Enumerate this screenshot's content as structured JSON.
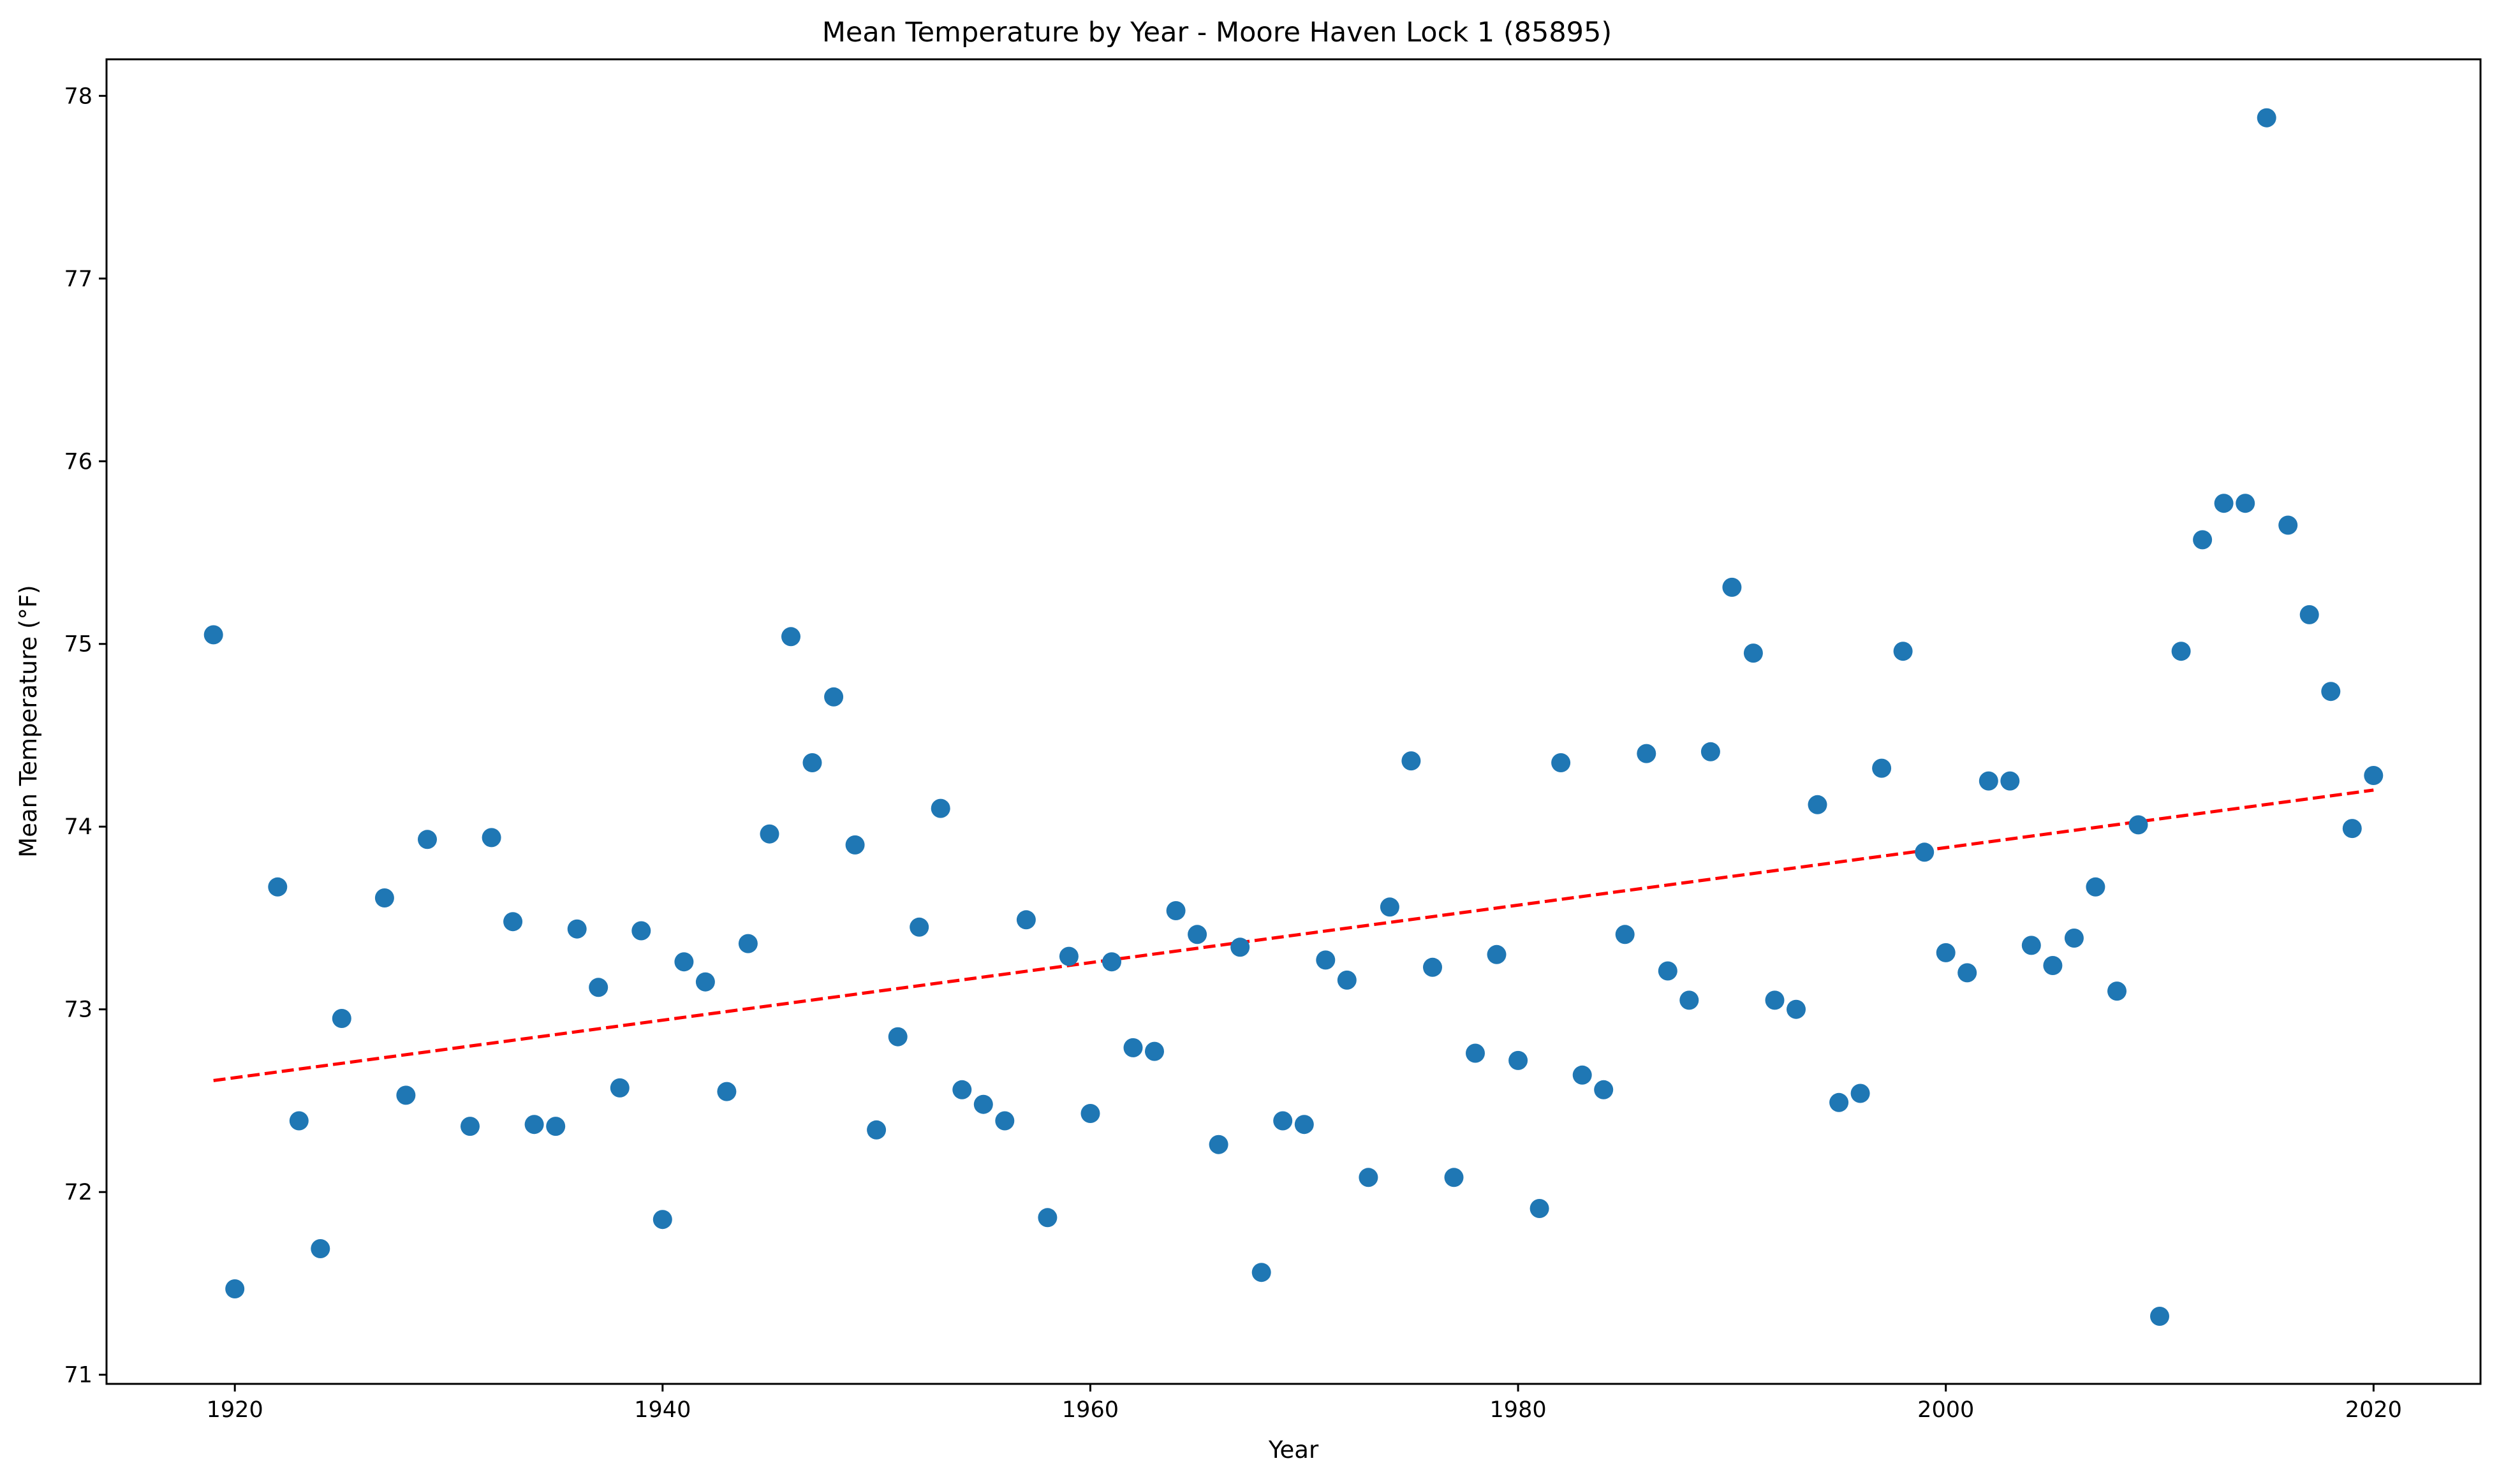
{
  "chart_data": {
    "type": "scatter",
    "title": "Mean Temperature by Year - Moore Haven Lock 1 (85895)",
    "xlabel": "Year",
    "ylabel": "Mean Temperature (°F)",
    "xlim": [
      1914,
      2025
    ],
    "ylim": [
      70.95,
      78.2
    ],
    "x_ticks": [
      1920,
      1940,
      1960,
      1980,
      2000,
      2020
    ],
    "y_ticks": [
      71,
      72,
      73,
      74,
      75,
      76,
      77,
      78
    ],
    "grid": false,
    "series": [
      {
        "color": "#1f77b4",
        "points": [
          [
            1919,
            75.05
          ],
          [
            1920,
            71.47
          ],
          [
            1922,
            73.67
          ],
          [
            1923,
            72.39
          ],
          [
            1924,
            71.69
          ],
          [
            1925,
            72.95
          ],
          [
            1927,
            73.61
          ],
          [
            1928,
            72.53
          ],
          [
            1929,
            73.93
          ],
          [
            1931,
            72.36
          ],
          [
            1932,
            73.94
          ],
          [
            1933,
            73.48
          ],
          [
            1934,
            72.37
          ],
          [
            1935,
            72.36
          ],
          [
            1936,
            73.44
          ],
          [
            1937,
            73.12
          ],
          [
            1938,
            72.57
          ],
          [
            1939,
            73.43
          ],
          [
            1940,
            71.85
          ],
          [
            1941,
            73.26
          ],
          [
            1942,
            73.15
          ],
          [
            1943,
            72.55
          ],
          [
            1944,
            73.36
          ],
          [
            1945,
            73.96
          ],
          [
            1946,
            75.04
          ],
          [
            1947,
            74.35
          ],
          [
            1948,
            74.71
          ],
          [
            1949,
            73.9
          ],
          [
            1950,
            72.34
          ],
          [
            1951,
            72.85
          ],
          [
            1952,
            73.45
          ],
          [
            1953,
            74.1
          ],
          [
            1954,
            72.56
          ],
          [
            1955,
            72.48
          ],
          [
            1956,
            72.39
          ],
          [
            1957,
            73.49
          ],
          [
            1958,
            71.86
          ],
          [
            1959,
            73.29
          ],
          [
            1960,
            72.43
          ],
          [
            1961,
            73.26
          ],
          [
            1962,
            72.79
          ],
          [
            1963,
            72.77
          ],
          [
            1964,
            73.54
          ],
          [
            1965,
            73.41
          ],
          [
            1966,
            72.26
          ],
          [
            1967,
            73.34
          ],
          [
            1968,
            71.56
          ],
          [
            1969,
            72.39
          ],
          [
            1970,
            72.37
          ],
          [
            1971,
            73.27
          ],
          [
            1972,
            73.16
          ],
          [
            1973,
            72.08
          ],
          [
            1974,
            73.56
          ],
          [
            1975,
            74.36
          ],
          [
            1976,
            73.23
          ],
          [
            1977,
            72.08
          ],
          [
            1978,
            72.76
          ],
          [
            1979,
            73.3
          ],
          [
            1980,
            72.72
          ],
          [
            1981,
            71.91
          ],
          [
            1982,
            74.35
          ],
          [
            1983,
            72.64
          ],
          [
            1984,
            72.56
          ],
          [
            1985,
            73.41
          ],
          [
            1986,
            74.4
          ],
          [
            1987,
            73.21
          ],
          [
            1988,
            73.05
          ],
          [
            1989,
            74.41
          ],
          [
            1990,
            75.31
          ],
          [
            1991,
            74.95
          ],
          [
            1992,
            73.05
          ],
          [
            1993,
            73.0
          ],
          [
            1994,
            74.12
          ],
          [
            1995,
            72.49
          ],
          [
            1996,
            72.54
          ],
          [
            1997,
            74.32
          ],
          [
            1998,
            74.96
          ],
          [
            1999,
            73.86
          ],
          [
            2000,
            73.31
          ],
          [
            2001,
            73.2
          ],
          [
            2002,
            74.25
          ],
          [
            2003,
            74.25
          ],
          [
            2004,
            73.35
          ],
          [
            2005,
            73.24
          ],
          [
            2006,
            73.39
          ],
          [
            2007,
            73.67
          ],
          [
            2008,
            73.1
          ],
          [
            2009,
            74.01
          ],
          [
            2010,
            71.32
          ],
          [
            2011,
            74.96
          ],
          [
            2012,
            75.57
          ],
          [
            2013,
            75.77
          ],
          [
            2014,
            75.77
          ],
          [
            2015,
            77.88
          ],
          [
            2016,
            75.65
          ],
          [
            2017,
            75.16
          ],
          [
            2018,
            74.74
          ],
          [
            2019,
            73.99
          ],
          [
            2020,
            74.28
          ]
        ]
      }
    ],
    "trendline": {
      "color": "#ff0000",
      "style": "dashed",
      "x": [
        1919,
        2020
      ],
      "y": [
        72.61,
        74.2
      ]
    }
  }
}
